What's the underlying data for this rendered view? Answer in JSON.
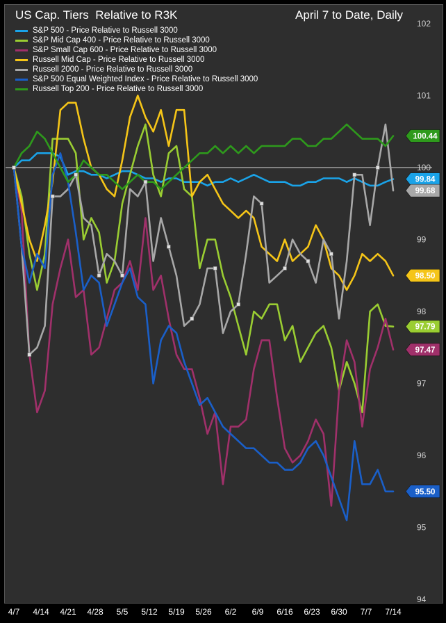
{
  "header": {
    "title": "US Cap. Tiers  Relative to R3K",
    "date_range": "April 7 to Date, Daily"
  },
  "chart_data": {
    "type": "line",
    "ylim": [
      94,
      102
    ],
    "y_ticks": [
      "102",
      "101",
      "100",
      "99",
      "98",
      "97",
      "96",
      "95",
      "94"
    ],
    "x_ticks": [
      "4/7",
      "4/14",
      "4/21",
      "4/28",
      "5/5",
      "5/12",
      "5/19",
      "5/26",
      "6/2",
      "6/9",
      "6/16",
      "6/23",
      "6/30",
      "7/7",
      "7/14"
    ],
    "reference_line": 100,
    "grid": false,
    "legend_position": "top-left",
    "series": [
      {
        "name": "S&P 500 - Price Relative to Russell 3000",
        "color": "#1aa3e8",
        "last_label": "99.84",
        "values": [
          100,
          100.1,
          100.1,
          100.2,
          100.2,
          100.2,
          100.15,
          99.9,
          99.95,
          99.95,
          99.9,
          99.9,
          99.85,
          99.9,
          99.95,
          99.95,
          99.9,
          99.85,
          99.85,
          99.8,
          99.85,
          99.85,
          99.8,
          99.8,
          99.8,
          99.75,
          99.8,
          99.8,
          99.85,
          99.8,
          99.85,
          99.9,
          99.85,
          99.8,
          99.8,
          99.8,
          99.75,
          99.75,
          99.8,
          99.8,
          99.85,
          99.85,
          99.85,
          99.8,
          99.85,
          99.8,
          99.75,
          99.75,
          99.8,
          99.84
        ]
      },
      {
        "name": "S&P Mid Cap 400 - Price Relative to Russell 3000",
        "color": "#9acd32",
        "last_label": "97.79",
        "values": [
          100,
          99.6,
          98.8,
          98.3,
          98.8,
          100.4,
          100.4,
          100.4,
          100.2,
          99,
          99.3,
          99.1,
          98.4,
          98.7,
          99.5,
          99.9,
          100.3,
          100.6,
          99.9,
          99.6,
          100.2,
          100.3,
          99.7,
          99.6,
          98.6,
          99,
          99,
          98.5,
          98.2,
          97.8,
          97.4,
          98,
          97.9,
          98.1,
          98.1,
          97.6,
          97.8,
          97.3,
          97.5,
          97.7,
          97.8,
          97.5,
          96.9,
          97.3,
          97,
          96.6,
          98,
          98.1,
          97.8,
          97.79
        ]
      },
      {
        "name": "S&P Small Cap 600 - Price Relative to Russell 3000",
        "color": "#a0306a",
        "last_label": "97.47",
        "values": [
          100,
          99.4,
          97.4,
          96.6,
          96.9,
          98.1,
          98.6,
          99,
          98.2,
          98.3,
          97.4,
          97.5,
          97.9,
          98.3,
          98.4,
          98.7,
          98.3,
          99.3,
          98.3,
          98.5,
          97.9,
          97.4,
          97.2,
          97.2,
          96.8,
          96.3,
          96.6,
          95.6,
          96.4,
          96.4,
          96.5,
          97.2,
          97.6,
          97.6,
          96.8,
          96.1,
          95.9,
          96,
          96.2,
          96.5,
          96.3,
          95.3,
          96.9,
          97.6,
          97.3,
          96.4,
          97.2,
          97.5,
          97.9,
          97.47
        ]
      },
      {
        "name": "Russell Mid Cap - Price Relative to Russell 3000",
        "color": "#f5c518",
        "last_label": "98.50",
        "values": [
          100,
          99.5,
          99,
          98.7,
          99.2,
          99.8,
          100.8,
          100.9,
          100.9,
          100.4,
          100,
          99.9,
          99.7,
          99.6,
          100.1,
          100.7,
          101,
          100.7,
          100.5,
          100.8,
          100.3,
          100.8,
          100.8,
          99.6,
          99.8,
          99.9,
          99.7,
          99.5,
          99.4,
          99.3,
          99.4,
          99.3,
          98.9,
          98.8,
          98.7,
          99,
          98.7,
          98.8,
          98.9,
          99.2,
          99,
          98.6,
          98.5,
          98.3,
          98.5,
          98.8,
          98.7,
          98.8,
          98.7,
          98.5
        ]
      },
      {
        "name": "Russell 2000 - Price Relative to Russell 3000",
        "color": "#a8a8a8",
        "last_label": "99.68",
        "values": [
          100,
          98.9,
          97.4,
          97.5,
          97.8,
          99.6,
          99.6,
          99.7,
          99.9,
          99.3,
          99.2,
          98.5,
          98.8,
          98.7,
          98.5,
          99.7,
          99.6,
          99.8,
          98.7,
          99.3,
          98.9,
          98.5,
          97.8,
          97.9,
          98.1,
          98.6,
          98.6,
          97.7,
          98,
          98.1,
          98.8,
          99.6,
          99.5,
          98.4,
          98.5,
          98.6,
          99,
          98.8,
          98.7,
          98.4,
          99,
          98.8,
          97.9,
          98.7,
          99.9,
          99.9,
          99.2,
          100,
          100.6,
          99.68
        ]
      },
      {
        "name": "S&P 500 Equal Weighted Index - Price Relative to Russell 3000",
        "color": "#1a5fc8",
        "last_label": "95.50",
        "values": [
          100,
          98.9,
          98.4,
          98.8,
          98.6,
          99.9,
          100.2,
          99.8,
          99.1,
          98.3,
          98.5,
          98.4,
          97.8,
          98.1,
          98.4,
          98.6,
          98.2,
          98.1,
          97,
          97.6,
          97.8,
          97.7,
          97.3,
          97,
          96.7,
          96.8,
          96.6,
          96.4,
          96.3,
          96.2,
          96.1,
          96.1,
          96,
          95.9,
          95.9,
          95.8,
          95.8,
          95.9,
          96.1,
          96.2,
          96,
          95.7,
          95.4,
          95.1,
          96.2,
          95.6,
          95.6,
          95.8,
          95.5,
          95.5
        ]
      },
      {
        "name": "Russell Top 200 - Price Relative to Russell 3000",
        "color": "#2e9a1c",
        "last_label": "100.44",
        "values": [
          100,
          100.2,
          100.3,
          100.5,
          100.4,
          100.2,
          100,
          99.8,
          99.9,
          100.1,
          100,
          99.9,
          99.9,
          99.8,
          99.7,
          99.8,
          99.9,
          99.8,
          99.8,
          99.7,
          99.8,
          99.9,
          100,
          100.1,
          100.2,
          100.2,
          100.3,
          100.2,
          100.3,
          100.2,
          100.3,
          100.2,
          100.3,
          100.3,
          100.3,
          100.3,
          100.4,
          100.4,
          100.3,
          100.3,
          100.4,
          100.4,
          100.5,
          100.6,
          100.5,
          100.4,
          100.4,
          100.4,
          100.3,
          100.44
        ]
      }
    ]
  }
}
